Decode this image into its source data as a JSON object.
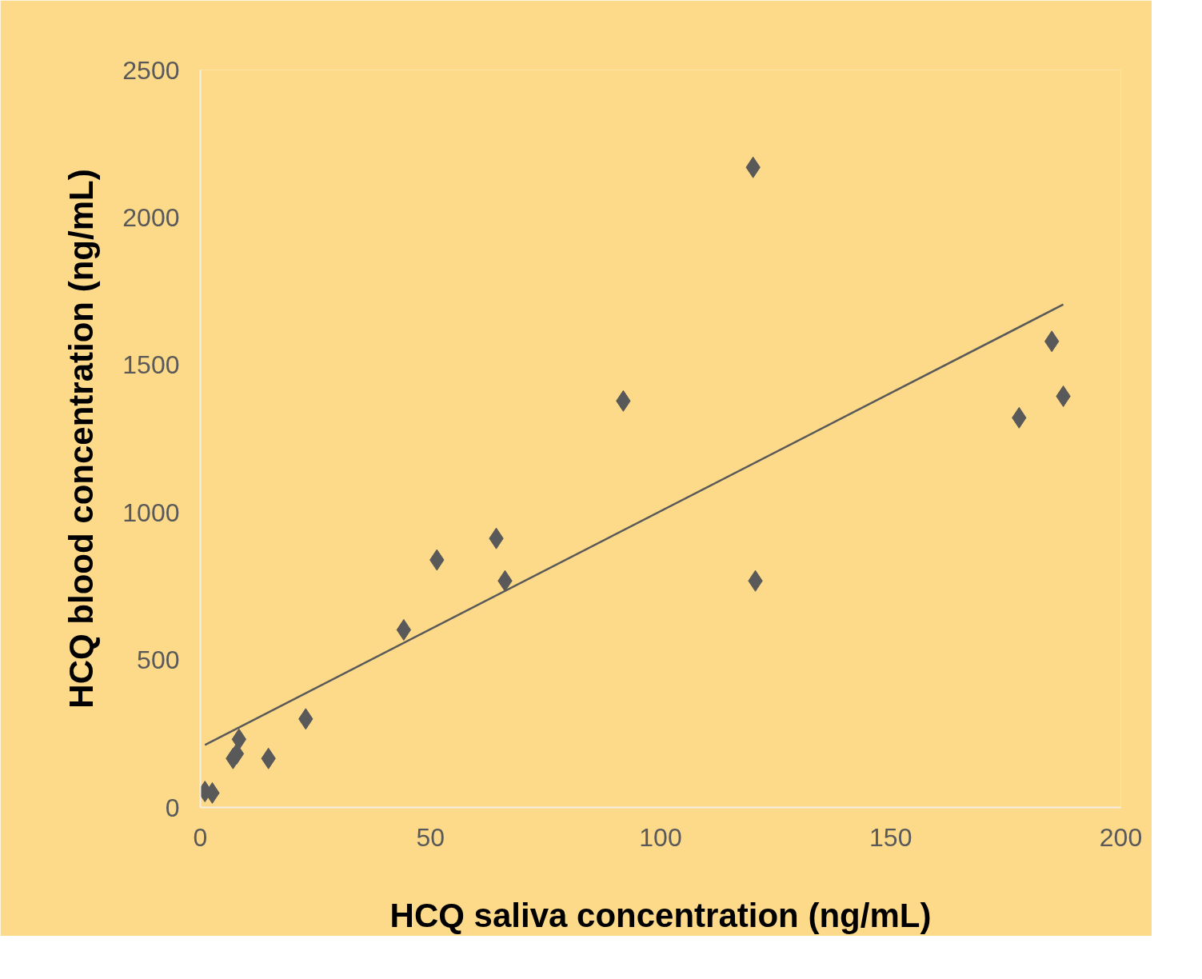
{
  "chart_data": {
    "type": "scatter",
    "xlabel": "HCQ saliva concentration (ng/mL)",
    "ylabel": "HCQ blood concentration (ng/mL)",
    "xlim": [
      0,
      200
    ],
    "ylim": [
      0,
      2500
    ],
    "xticks": [
      0,
      50,
      100,
      150,
      200
    ],
    "yticks": [
      0,
      500,
      1000,
      1500,
      2000,
      2500
    ],
    "grid": false,
    "marker": "diamond",
    "series": [
      {
        "color": "#595959",
        "x": [
          1.0,
          2.6,
          7.1,
          7.9,
          8.4,
          14.8,
          22.9,
          44.2,
          51.4,
          64.3,
          66.2,
          91.9,
          120.1,
          120.6,
          177.9,
          185.0,
          187.5
        ],
        "values": [
          54,
          49,
          166,
          182,
          231,
          166,
          300,
          602,
          839,
          912,
          768,
          1378,
          2170,
          768,
          1321,
          1580,
          1394
        ]
      },
      {
        "type": "line",
        "color": "#595959",
        "marker": "none",
        "line_style": "solid",
        "x": [
          1.0,
          187.5
        ],
        "values": [
          212,
          1705
        ]
      }
    ]
  }
}
